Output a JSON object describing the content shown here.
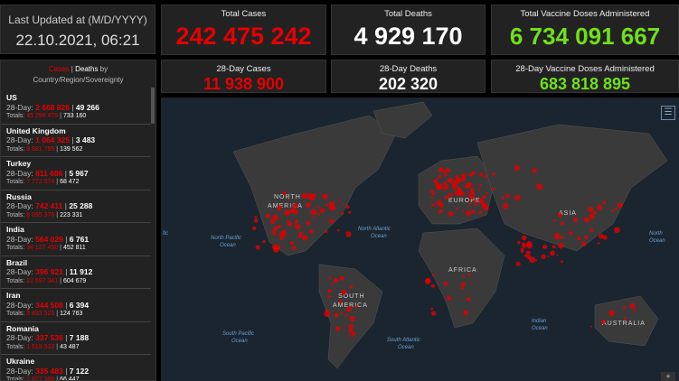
{
  "updated": {
    "label": "Last Updated at (M/D/YYYY)",
    "value": "22.10.2021, 06:21"
  },
  "stats": {
    "total_cases": {
      "label": "Total Cases",
      "value": "242 475 242"
    },
    "total_deaths": {
      "label": "Total Deaths",
      "value": "4 929 170"
    },
    "total_vaccine": {
      "label": "Total Vaccine Doses Administered",
      "value": "6 734 091 667"
    },
    "cases_28": {
      "label": "28-Day Cases",
      "value": "11 938 900"
    },
    "deaths_28": {
      "label": "28-Day Deaths",
      "value": "202 320"
    },
    "vaccine_28": {
      "label": "28-Day Vaccine Doses Administered",
      "value": "683 818 895"
    }
  },
  "list": {
    "h_cases": "Cases",
    "h_sep": " | ",
    "h_deaths": "Deaths",
    "h_rest": " by",
    "h_line2": "Country/Region/Sovereignty",
    "day_label": "28-Day: ",
    "tot_label": "Totals: ",
    "items": [
      {
        "name": "US",
        "c28": "2 668 826",
        "d28": "49 266",
        "ct": "45 298 479",
        "dt": "733 160"
      },
      {
        "name": "United Kingdom",
        "c28": "1 064 325",
        "d28": "3 483",
        "ct": "8 681 795",
        "dt": "139 562"
      },
      {
        "name": "Turkey",
        "c28": "811 686",
        "d28": "5 967",
        "ct": "7 772 574",
        "dt": "68 472"
      },
      {
        "name": "Russia",
        "c28": "742 411",
        "d28": "25 288",
        "ct": "8 095 376",
        "dt": "223 331"
      },
      {
        "name": "India",
        "c28": "564 029",
        "d28": "6 761",
        "ct": "34 127 450",
        "dt": "452 811"
      },
      {
        "name": "Brazil",
        "c28": "396 921",
        "d28": "11 912",
        "ct": "21 697 341",
        "dt": "604 679"
      },
      {
        "name": "Iran",
        "c28": "344 508",
        "d28": "6 394",
        "ct": "5 833 525",
        "dt": "124 763"
      },
      {
        "name": "Romania",
        "c28": "337 536",
        "d28": "7 188",
        "ct": "1 519 532",
        "dt": "43 487"
      },
      {
        "name": "Ukraine",
        "c28": "335 483",
        "d28": "7 122",
        "ct": "2 827 388",
        "dt": "66 447"
      }
    ]
  },
  "map": {
    "labels": {
      "na": "NORTH",
      "na2": "AMERICA",
      "sa": "SOUTH",
      "sa2": "AMERICA",
      "eu": "EUROPE",
      "af": "AFRICA",
      "as": "ASIA",
      "au": "AUSTRALIA"
    },
    "oceans": {
      "npo": "North Pacific",
      "npo2": "Ocean",
      "nao": "North Atlantic",
      "nao2": "Ocean",
      "spo": "South Pacific",
      "spo2": "Ocean",
      "sao": "South Atlantic",
      "sao2": "Ocean",
      "io": "Indian",
      "io2": "Ocean",
      "npo_r": "North",
      "npo_r2": "Ocean",
      "fic": "fic"
    },
    "legend_icon": "legend-list-icon",
    "zoom_in": "+"
  },
  "colors": {
    "cases": "#e60000",
    "deaths": "#ffffff",
    "vaccine": "#70e01a"
  }
}
